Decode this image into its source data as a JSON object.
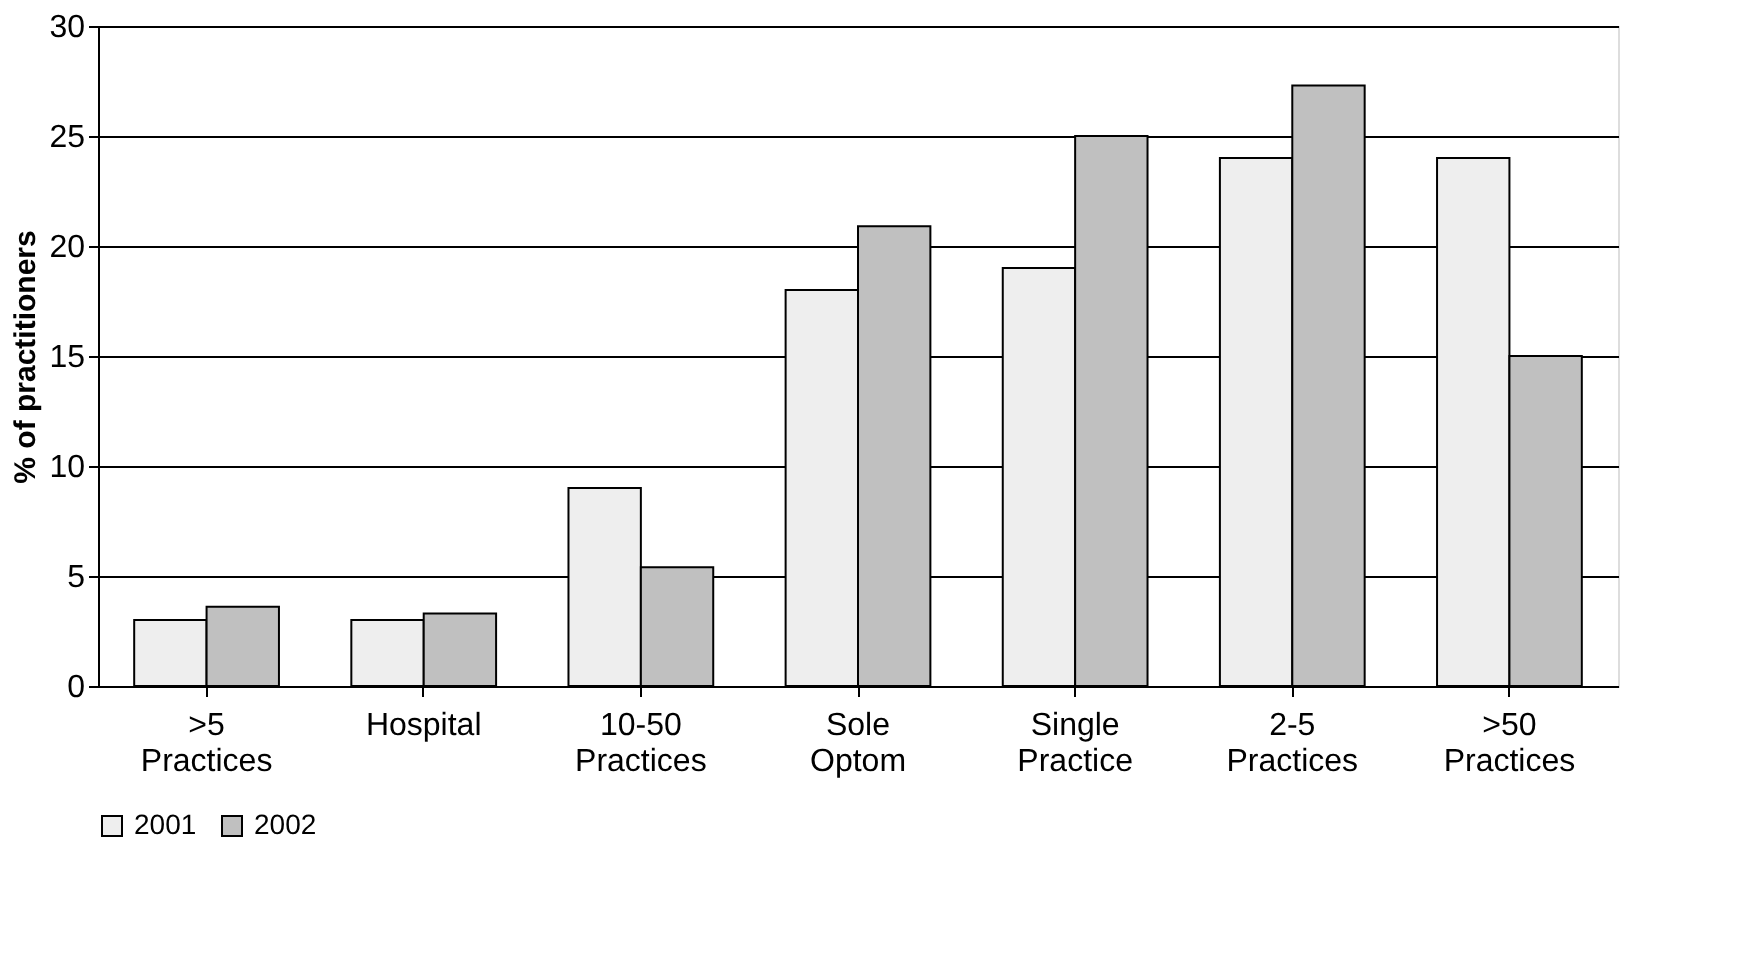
{
  "chart_data": {
    "type": "bar",
    "ylabel": "% of practitioners",
    "categories": [
      ">5 Practices",
      "Hospital",
      "10-50 Practices",
      "Sole Optom",
      "Single Practice",
      "2-5 Practices",
      ">50 Practices"
    ],
    "series": [
      {
        "name": "2001",
        "color": "#eeeeee",
        "values": [
          3.0,
          3.0,
          9.0,
          18.0,
          19.0,
          24.0,
          24.0
        ]
      },
      {
        "name": "2002",
        "color": "#c0c0c0",
        "values": [
          3.6,
          3.3,
          5.4,
          20.9,
          25.0,
          27.3,
          15.0
        ]
      }
    ],
    "ylim": [
      0,
      30
    ],
    "yticks": [
      0,
      5,
      10,
      15,
      20,
      25,
      30
    ],
    "grid": "y",
    "legend": "bottom"
  }
}
